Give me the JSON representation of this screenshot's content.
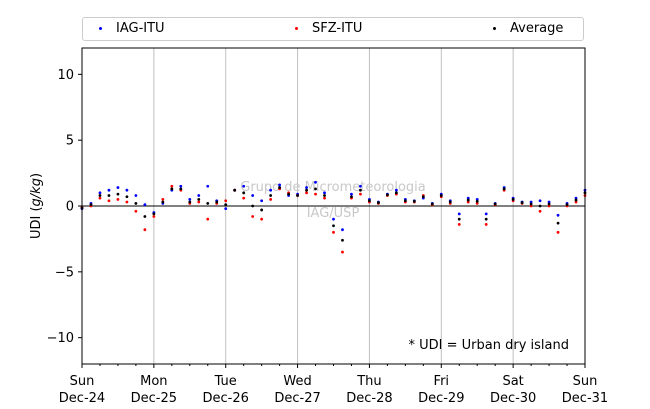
{
  "chart_data": {
    "type": "scatter",
    "ylabel_prefix": "UDI ",
    "ylabel_unit": "g/kg",
    "ylim": [
      -12,
      12
    ],
    "yticks": [
      10,
      5,
      0,
      -5,
      -10
    ],
    "ytick_labels": [
      "10",
      "5",
      "0",
      "−5",
      "−10"
    ],
    "xlim": [
      0,
      7
    ],
    "x_tick_positions": [
      0,
      1,
      2,
      3,
      4,
      5,
      6,
      7
    ],
    "x_tick_labels": [
      [
        "Sun",
        "Dec-24"
      ],
      [
        "Mon",
        "Dec-25"
      ],
      [
        "Tue",
        "Dec-26"
      ],
      [
        "Wed",
        "Dec-27"
      ],
      [
        "Thu",
        "Dec-28"
      ],
      [
        "Fri",
        "Dec-29"
      ],
      [
        "Sat",
        "Dec-30"
      ],
      [
        "Sun",
        "Dec-31"
      ]
    ],
    "grid": "x-major",
    "legend_position": "top",
    "annotation": "* UDI = Urban dry island",
    "watermark": [
      "Grupo de Micrometeorologia",
      "IAG/USP"
    ],
    "series": [
      {
        "name": "IAG-ITU",
        "color": "#0000ff",
        "x": [
          0.0,
          0.125,
          0.25,
          0.375,
          0.5,
          0.625,
          0.75,
          0.875,
          1.0,
          1.125,
          1.25,
          1.375,
          1.5,
          1.625,
          1.75,
          1.875,
          2.0,
          2.125,
          2.25,
          2.375,
          2.5,
          2.625,
          2.75,
          2.875,
          3.0,
          3.125,
          3.25,
          3.375,
          3.5,
          3.625,
          3.75,
          3.875,
          4.0,
          4.125,
          4.25,
          4.375,
          4.5,
          4.625,
          4.75,
          4.875,
          5.0,
          5.125,
          5.25,
          5.375,
          5.5,
          5.625,
          5.75,
          5.875,
          6.0,
          6.125,
          6.25,
          6.375,
          6.5,
          6.625,
          6.75,
          6.875,
          7.0
        ],
        "y": [
          -0.2,
          0.2,
          1.0,
          1.2,
          1.4,
          1.2,
          0.8,
          0.1,
          -0.5,
          0.2,
          1.2,
          1.5,
          0.5,
          0.8,
          1.5,
          0.4,
          -0.2,
          1.2,
          1.5,
          0.8,
          0.4,
          1.2,
          1.6,
          0.8,
          0.9,
          1.4,
          1.8,
          1.0,
          -1.0,
          -1.8,
          0.9,
          1.5,
          0.5,
          0.3,
          0.9,
          1.2,
          0.5,
          0.4,
          0.6,
          0.2,
          0.9,
          0.4,
          -0.6,
          0.6,
          0.5,
          -0.6,
          0.2,
          1.4,
          0.6,
          0.3,
          0.3,
          0.4,
          0.3,
          -0.7,
          0.2,
          0.6,
          1.2
        ]
      },
      {
        "name": "SFZ-ITU",
        "color": "#ff0000",
        "x": [
          0.0,
          0.125,
          0.25,
          0.375,
          0.5,
          0.625,
          0.75,
          0.875,
          1.0,
          1.125,
          1.25,
          1.375,
          1.5,
          1.625,
          1.75,
          1.875,
          2.0,
          2.125,
          2.25,
          2.375,
          2.5,
          2.625,
          2.75,
          2.875,
          3.0,
          3.125,
          3.25,
          3.375,
          3.5,
          3.625,
          3.75,
          3.875,
          4.0,
          4.125,
          4.25,
          4.375,
          4.5,
          4.625,
          4.75,
          4.875,
          5.0,
          5.125,
          5.25,
          5.375,
          5.5,
          5.625,
          5.75,
          5.875,
          6.0,
          6.125,
          6.25,
          6.375,
          6.5,
          6.625,
          6.75,
          6.875,
          7.0
        ],
        "y": [
          -0.1,
          0.0,
          0.6,
          0.4,
          0.5,
          0.3,
          -0.4,
          -1.8,
          -0.8,
          0.5,
          1.5,
          1.2,
          0.2,
          0.3,
          -1.0,
          0.2,
          0.4,
          1.2,
          0.6,
          -0.8,
          -1.0,
          0.5,
          1.3,
          1.0,
          0.8,
          1.0,
          0.9,
          0.6,
          -2.0,
          -3.5,
          0.6,
          0.9,
          0.3,
          0.2,
          0.8,
          0.9,
          0.3,
          0.3,
          0.8,
          0.1,
          0.7,
          0.2,
          -1.4,
          0.3,
          0.2,
          -1.4,
          0.1,
          1.2,
          0.4,
          0.2,
          0.0,
          -0.4,
          0.0,
          -2.0,
          0.0,
          0.3,
          0.8
        ]
      },
      {
        "name": "Average",
        "color": "#000000",
        "x": [
          0.0,
          0.125,
          0.25,
          0.375,
          0.5,
          0.625,
          0.75,
          0.875,
          1.0,
          1.125,
          1.25,
          1.375,
          1.5,
          1.625,
          1.75,
          1.875,
          2.0,
          2.125,
          2.25,
          2.375,
          2.5,
          2.625,
          2.75,
          2.875,
          3.0,
          3.125,
          3.25,
          3.375,
          3.5,
          3.625,
          3.75,
          3.875,
          4.0,
          4.125,
          4.25,
          4.375,
          4.5,
          4.625,
          4.75,
          4.875,
          5.0,
          5.125,
          5.25,
          5.375,
          5.5,
          5.625,
          5.75,
          5.875,
          6.0,
          6.125,
          6.25,
          6.375,
          6.5,
          6.625,
          6.75,
          6.875,
          7.0
        ],
        "y": [
          -0.15,
          0.1,
          0.8,
          0.8,
          0.9,
          0.7,
          0.2,
          -0.8,
          -0.6,
          0.3,
          1.3,
          1.3,
          0.3,
          0.5,
          0.2,
          0.3,
          0.1,
          1.2,
          1.0,
          0.0,
          -0.3,
          0.8,
          1.4,
          0.9,
          0.8,
          1.2,
          1.3,
          0.8,
          -1.5,
          -2.6,
          0.7,
          1.2,
          0.4,
          0.25,
          0.85,
          1.0,
          0.4,
          0.35,
          0.7,
          0.15,
          0.8,
          0.3,
          -1.0,
          0.45,
          0.35,
          -1.0,
          0.15,
          1.3,
          0.5,
          0.25,
          0.15,
          0.0,
          0.15,
          -1.3,
          0.1,
          0.45,
          1.0
        ]
      }
    ]
  }
}
